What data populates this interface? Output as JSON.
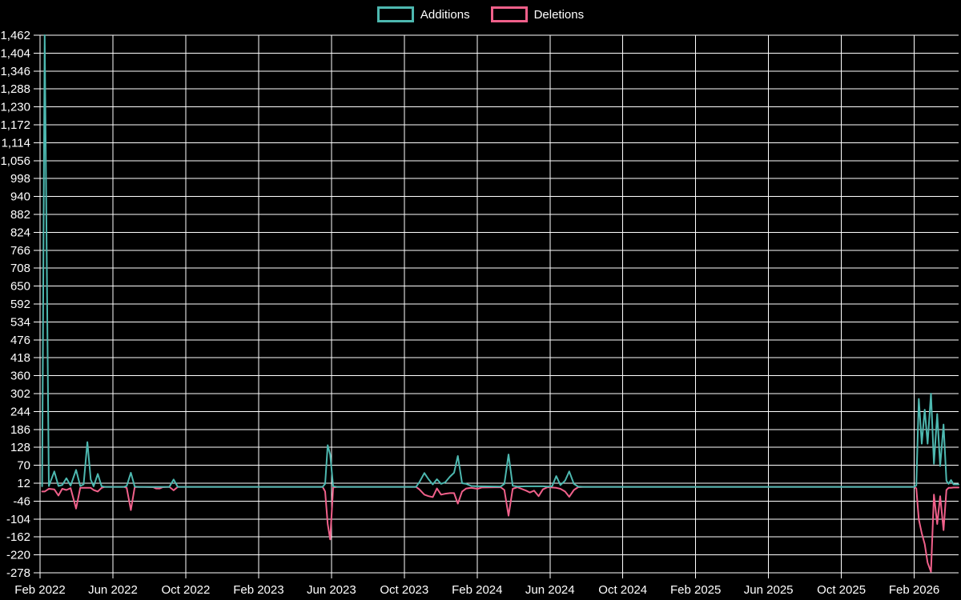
{
  "legend": {
    "items": [
      {
        "label": "Additions",
        "color": "#4db8b0"
      },
      {
        "label": "Deletions",
        "color": "#f0608a"
      }
    ]
  },
  "chart_data": {
    "type": "line",
    "title": "",
    "xlabel": "",
    "ylabel": "",
    "x_unit": "weeks since Feb 2022",
    "background_color": "#000000",
    "grid_color": "#ffffff",
    "text_color": "#ffffff",
    "grid": true,
    "legend_position": "top-center",
    "ylim": [
      -278,
      1462
    ],
    "y_tick_step": 58,
    "y_ticks": [
      1462,
      1404,
      1346,
      1288,
      1230,
      1172,
      1114,
      1056,
      998,
      940,
      882,
      824,
      766,
      708,
      650,
      592,
      534,
      476,
      418,
      360,
      302,
      244,
      186,
      128,
      70,
      12,
      -46,
      -104,
      -162,
      -220,
      -278
    ],
    "y_tick_labels": [
      "1,462",
      "1,404",
      "1,346",
      "1,288",
      "1,230",
      "1,172",
      "1,114",
      "1,056",
      "998",
      "940",
      "882",
      "824",
      "766",
      "708",
      "650",
      "592",
      "534",
      "476",
      "418",
      "360",
      "302",
      "244",
      "186",
      "128",
      "70",
      "12",
      "-46",
      "-104",
      "-162",
      "-220",
      "-278"
    ],
    "xlim_t": [
      0,
      219.4
    ],
    "x_ticks": [
      {
        "t": 0.0,
        "label": "Feb 2022"
      },
      {
        "t": 17.4,
        "label": "Jun 2022"
      },
      {
        "t": 34.8,
        "label": "Oct 2022"
      },
      {
        "t": 52.2,
        "label": "Feb 2023"
      },
      {
        "t": 69.6,
        "label": "Jun 2023"
      },
      {
        "t": 87.0,
        "label": "Oct 2023"
      },
      {
        "t": 104.4,
        "label": "Feb 2024"
      },
      {
        "t": 121.8,
        "label": "Jun 2024"
      },
      {
        "t": 139.2,
        "label": "Oct 2024"
      },
      {
        "t": 156.6,
        "label": "Feb 2025"
      },
      {
        "t": 174.0,
        "label": "Jun 2025"
      },
      {
        "t": 191.4,
        "label": "Oct 2025"
      },
      {
        "t": 208.8,
        "label": "Feb 2026"
      }
    ],
    "series": [
      {
        "name": "Additions",
        "color": "#4db8b0",
        "points": [
          [
            0.5,
            2
          ],
          [
            1.1,
            1462
          ],
          [
            2.1,
            3
          ],
          [
            3.4,
            50
          ],
          [
            4.4,
            3
          ],
          [
            5.3,
            6
          ],
          [
            6.3,
            28
          ],
          [
            7.3,
            4
          ],
          [
            8.6,
            55
          ],
          [
            9.6,
            3
          ],
          [
            10.4,
            8
          ],
          [
            11.3,
            145
          ],
          [
            12.1,
            24
          ],
          [
            12.8,
            2
          ],
          [
            13.8,
            42
          ],
          [
            14.7,
            2
          ],
          [
            15.5,
            0
          ],
          [
            20,
            0
          ],
          [
            20.7,
            3
          ],
          [
            21.7,
            46
          ],
          [
            22.6,
            1
          ],
          [
            23.5,
            0
          ],
          [
            27,
            0
          ],
          [
            27.7,
            0
          ],
          [
            28.6,
            0
          ],
          [
            29.3,
            0
          ],
          [
            30.9,
            0
          ],
          [
            31.9,
            24
          ],
          [
            32.9,
            0
          ],
          [
            67.5,
            0
          ],
          [
            68.1,
            10
          ],
          [
            68.7,
            135
          ],
          [
            69.3,
            105
          ],
          [
            70,
            2
          ],
          [
            71,
            0
          ],
          [
            89.8,
            0
          ],
          [
            90.6,
            15
          ],
          [
            91.8,
            45
          ],
          [
            92.8,
            25
          ],
          [
            93.8,
            8
          ],
          [
            94.8,
            25
          ],
          [
            95.8,
            10
          ],
          [
            96.8,
            15
          ],
          [
            97.9,
            33
          ],
          [
            98.9,
            46
          ],
          [
            99.8,
            100
          ],
          [
            100.8,
            12
          ],
          [
            101.8,
            10
          ],
          [
            103,
            3
          ],
          [
            104.5,
            2
          ],
          [
            105.5,
            2
          ],
          [
            110,
            1
          ],
          [
            110.9,
            10
          ],
          [
            111.9,
            105
          ],
          [
            112.9,
            4
          ],
          [
            114,
            1
          ],
          [
            116.1,
            2
          ],
          [
            117,
            2
          ],
          [
            118,
            2
          ],
          [
            119.1,
            2
          ],
          [
            120.1,
            2
          ],
          [
            121.2,
            1
          ],
          [
            122.3,
            2
          ],
          [
            123.3,
            35
          ],
          [
            124.3,
            6
          ],
          [
            125.4,
            20
          ],
          [
            126.4,
            50
          ],
          [
            127.5,
            10
          ],
          [
            128.5,
            1
          ],
          [
            130,
            0
          ],
          [
            208.8,
            0
          ],
          [
            209.3,
            5
          ],
          [
            209.9,
            285
          ],
          [
            210.6,
            140
          ],
          [
            211.3,
            250
          ],
          [
            212,
            140
          ],
          [
            212.8,
            302
          ],
          [
            213.5,
            75
          ],
          [
            214.3,
            236
          ],
          [
            215,
            68
          ],
          [
            215.8,
            202
          ],
          [
            216.5,
            20
          ],
          [
            217,
            10
          ],
          [
            217.6,
            22
          ],
          [
            218.2,
            8
          ],
          [
            219.4,
            8
          ]
        ]
      },
      {
        "name": "Deletions",
        "color": "#f0608a",
        "points": [
          [
            0.5,
            -15
          ],
          [
            1.1,
            -15
          ],
          [
            2.1,
            -6
          ],
          [
            3.4,
            -8
          ],
          [
            4.4,
            -28
          ],
          [
            5.3,
            -6
          ],
          [
            6.3,
            -10
          ],
          [
            7.3,
            -4
          ],
          [
            8.6,
            -70
          ],
          [
            9.6,
            -3
          ],
          [
            10.4,
            -3
          ],
          [
            11.3,
            -3
          ],
          [
            12.1,
            -3
          ],
          [
            12.8,
            -10
          ],
          [
            13.8,
            -15
          ],
          [
            14.7,
            -3
          ],
          [
            15.5,
            0
          ],
          [
            20,
            0
          ],
          [
            20.7,
            -3
          ],
          [
            21.7,
            -75
          ],
          [
            22.6,
            -1
          ],
          [
            23.5,
            0
          ],
          [
            27,
            -1
          ],
          [
            27.7,
            -5
          ],
          [
            28.6,
            -5
          ],
          [
            29.3,
            -1
          ],
          [
            30.9,
            0
          ],
          [
            31.9,
            -11
          ],
          [
            32.9,
            0
          ],
          [
            67.5,
            0
          ],
          [
            68.1,
            -15
          ],
          [
            68.7,
            -120
          ],
          [
            69.3,
            -170
          ],
          [
            70,
            -2
          ],
          [
            71,
            0
          ],
          [
            89.8,
            0
          ],
          [
            90.6,
            -8
          ],
          [
            91.8,
            -25
          ],
          [
            92.8,
            -30
          ],
          [
            93.8,
            -33
          ],
          [
            94.8,
            -5
          ],
          [
            95.8,
            -25
          ],
          [
            96.8,
            -22
          ],
          [
            97.9,
            -20
          ],
          [
            98.9,
            -20
          ],
          [
            99.8,
            -54
          ],
          [
            100.8,
            -15
          ],
          [
            101.8,
            -5
          ],
          [
            103,
            -3
          ],
          [
            104.5,
            -6
          ],
          [
            105.5,
            -2
          ],
          [
            110,
            -1
          ],
          [
            110.9,
            -10
          ],
          [
            111.9,
            -93
          ],
          [
            112.9,
            -6
          ],
          [
            114,
            -1
          ],
          [
            116.1,
            -12
          ],
          [
            117,
            -18
          ],
          [
            118,
            -12
          ],
          [
            119.1,
            -30
          ],
          [
            120.1,
            -8
          ],
          [
            121.2,
            -1
          ],
          [
            122.3,
            -2
          ],
          [
            123.3,
            -3
          ],
          [
            124.3,
            -6
          ],
          [
            125.4,
            -15
          ],
          [
            126.4,
            -32
          ],
          [
            127.5,
            -10
          ],
          [
            128.5,
            -1
          ],
          [
            130,
            0
          ],
          [
            208.8,
            0
          ],
          [
            209.3,
            -5
          ],
          [
            209.9,
            -105
          ],
          [
            210.6,
            -150
          ],
          [
            211.3,
            -185
          ],
          [
            212,
            -245
          ],
          [
            212.8,
            -275
          ],
          [
            213.5,
            -25
          ],
          [
            214.3,
            -120
          ],
          [
            215,
            -30
          ],
          [
            215.8,
            -140
          ],
          [
            216.5,
            -10
          ],
          [
            217,
            -3
          ],
          [
            217.6,
            -3
          ],
          [
            218.2,
            -2
          ],
          [
            219.4,
            -2
          ]
        ]
      }
    ]
  }
}
